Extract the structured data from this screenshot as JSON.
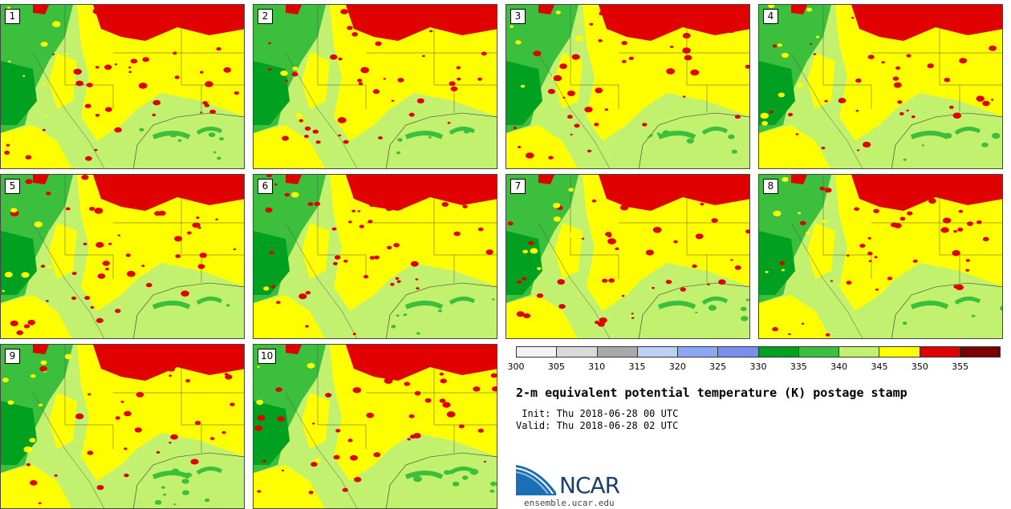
{
  "panels": [
    {
      "label": "1"
    },
    {
      "label": "2"
    },
    {
      "label": "3"
    },
    {
      "label": "4"
    },
    {
      "label": "5"
    },
    {
      "label": "6"
    },
    {
      "label": "7"
    },
    {
      "label": "8"
    },
    {
      "label": "9"
    },
    {
      "label": "10"
    }
  ],
  "colorbar": {
    "colors": [
      "#f2f2f2",
      "#d9d9d9",
      "#a8a8a8",
      "#bcd0f7",
      "#8ca8f5",
      "#7b8ef0",
      "#00a020",
      "#3cbf3c",
      "#c2f06f",
      "#ffff00",
      "#e00000",
      "#7a0000"
    ],
    "ticks": [
      "300",
      "305",
      "310",
      "315",
      "320",
      "325",
      "330",
      "335",
      "340",
      "345",
      "350",
      "355"
    ]
  },
  "title": "2-m equivalent potential temperature (K) postage stamp",
  "init": " Init: Thu 2018-06-28 00 UTC",
  "valid": "Valid: Thu 2018-06-28 02 UTC",
  "logo": {
    "text": "NCAR",
    "url": "ensemble.ucar.edu"
  }
}
